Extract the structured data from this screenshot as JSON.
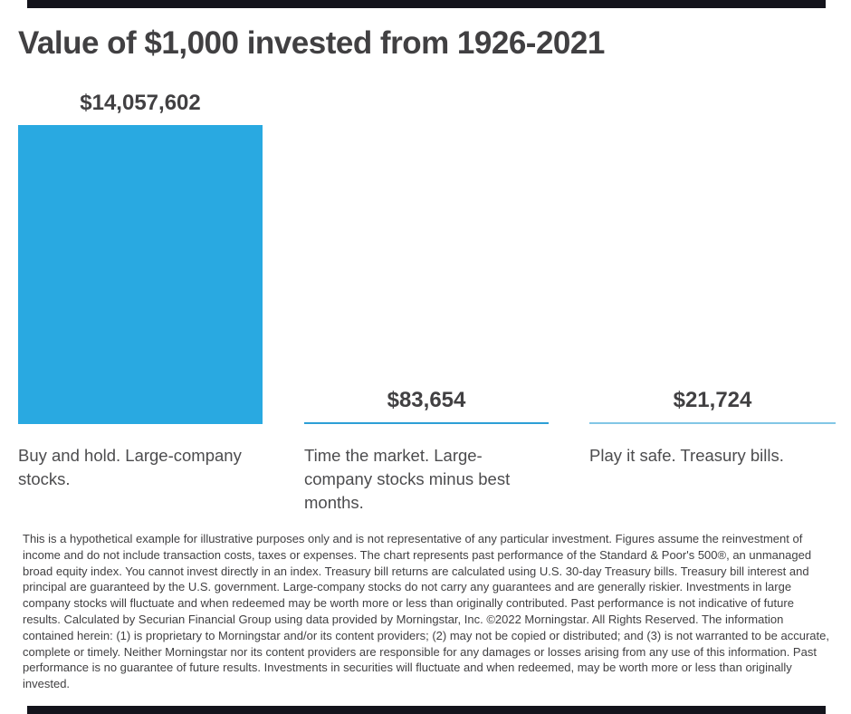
{
  "page": {
    "title": "Value of $1,000 invested from 1926-2021"
  },
  "chart_data": {
    "type": "bar",
    "title": "Value of $1,000 invested from 1926-2021",
    "categories": [
      "Buy and hold. Large-company stocks.",
      "Time the market. Large-company stocks minus best months.",
      "Play it safe. Treasury bills."
    ],
    "category_display": [
      "Buy and hold. Large-company\nstocks.",
      "Time the market. Large-\ncompany stocks minus best\nmonths.",
      "Play it safe. Treasury bills."
    ],
    "values": [
      14057602,
      83654,
      21724
    ],
    "value_labels": [
      "$14,057,602",
      "$83,654",
      "$21,724"
    ],
    "bar_colors": [
      "#29a9e1",
      "#2d9fd6",
      "#82c7e6"
    ],
    "xlabel": "",
    "ylabel": "",
    "ylim": [
      0,
      14057602
    ],
    "grid": false,
    "legend": false,
    "baseline_note": "bars share a common baseline; two smaller values render as thin lines"
  },
  "disclaimer": {
    "text": "This is a hypothetical example for illustrative purposes only and is not representative of any particular investment. Figures assume the reinvestment of income and do not include transaction costs, taxes or expenses. The chart represents past performance of the Standard & Poor's 500®, an unmanaged broad equity index. You cannot invest directly in an index. Treasury bill returns are calculated using U.S. 30-day Treasury bills. Treasury bill interest and principal are guaranteed by the U.S. government. Large-company stocks do not carry any guarantees and are generally riskier. Investments in large company stocks will fluctuate and when redeemed may be worth more or less than originally contributed. Past performance is not indicative of future results. Calculated by Securian Financial Group using data provided by Morningstar, Inc. ©2022 Morningstar. All Rights Reserved. The information contained herein: (1) is proprietary to Morningstar and/or its content providers; (2) may not be copied or distributed; and (3) is not warranted to be accurate, complete or timely. Neither Morningstar nor its content providers are responsible for any damages or losses arising from any use of this information. Past performance is no guarantee of future results. Investments in securities will fluctuate and when redeemed, may be worth more or less than originally invested."
  },
  "colors": {
    "title_text": "#414042",
    "category_text": "#4c4c4e",
    "disclaimer_text": "#414042",
    "primary_bar_blue": "#29a9e1",
    "secondary_bar_blue": "#2d9fd6",
    "tertiary_bar_blue": "#82c7e6",
    "edge_rule_dark": "#14141c",
    "background": "#ffffff"
  }
}
